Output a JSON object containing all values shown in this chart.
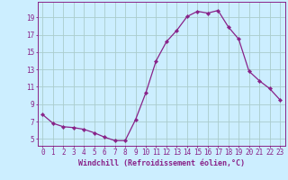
{
  "x": [
    0,
    1,
    2,
    3,
    4,
    5,
    6,
    7,
    8,
    9,
    10,
    11,
    12,
    13,
    14,
    15,
    16,
    17,
    18,
    19,
    20,
    21,
    22,
    23
  ],
  "y": [
    7.8,
    6.8,
    6.4,
    6.3,
    6.1,
    5.7,
    5.2,
    4.8,
    4.8,
    7.2,
    10.3,
    14.0,
    16.2,
    17.5,
    19.1,
    19.7,
    19.5,
    19.8,
    17.9,
    16.5,
    12.8,
    11.7,
    10.8,
    9.5
  ],
  "line_color": "#882288",
  "marker": "D",
  "marker_size": 2.2,
  "bg_color": "#cceeff",
  "grid_color": "#aacccc",
  "axis_color": "#882288",
  "xlabel": "Windchill (Refroidissement éolien,°C)",
  "xlabel_fontsize": 6.0,
  "ylim": [
    4.2,
    20.8
  ],
  "xlim": [
    -0.5,
    23.5
  ],
  "yticks": [
    5,
    7,
    9,
    11,
    13,
    15,
    17,
    19
  ],
  "xticks": [
    0,
    1,
    2,
    3,
    4,
    5,
    6,
    7,
    8,
    9,
    10,
    11,
    12,
    13,
    14,
    15,
    16,
    17,
    18,
    19,
    20,
    21,
    22,
    23
  ],
  "tick_fontsize": 5.5
}
